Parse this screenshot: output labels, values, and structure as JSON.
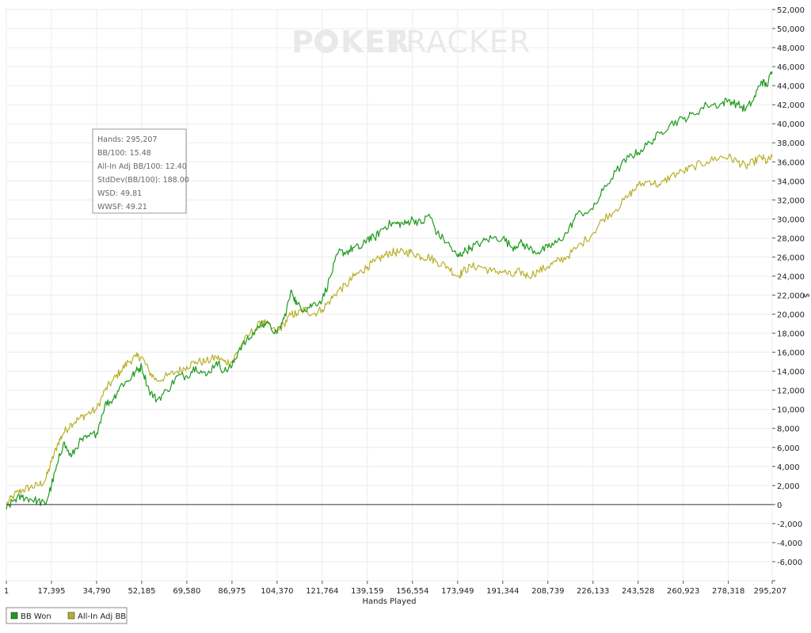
{
  "watermark": {
    "left": "P",
    "middle": "KER",
    "right": "TRACKER"
  },
  "stats": [
    "Hands: 295,207",
    "BB/100: 15.48",
    "All-In Adj BB/100: 12.40",
    "StdDev(BB/100): 188.00",
    "WSD: 49.81",
    "WWSF: 49.21"
  ],
  "legend": [
    {
      "label": "BB Won",
      "color": "#1e9a1e"
    },
    {
      "label": "All-In Adj BB",
      "color": "#b9b02a"
    }
  ],
  "chart_data": {
    "type": "line",
    "xlabel": "Hands Played",
    "ylabel": "$",
    "xlim": [
      1,
      295207
    ],
    "ylim": [
      -8000,
      52000
    ],
    "x_ticks": [
      1,
      17395,
      34790,
      52185,
      69580,
      86975,
      104370,
      121764,
      139159,
      156554,
      173949,
      191344,
      208739,
      226133,
      243528,
      260923,
      278318,
      295207
    ],
    "x_tick_labels": [
      "1",
      "17,395",
      "34,790",
      "52,185",
      "69,580",
      "86,975",
      "104,370",
      "121,764",
      "139,159",
      "156,554",
      "173,949",
      "191,344",
      "208,739",
      "226,133",
      "243,528",
      "260,923",
      "278,318",
      "295,207"
    ],
    "y_ticks": [
      -8000,
      -6000,
      -4000,
      -2000,
      0,
      2000,
      4000,
      6000,
      8000,
      10000,
      12000,
      14000,
      16000,
      18000,
      20000,
      22000,
      24000,
      26000,
      28000,
      30000,
      32000,
      34000,
      36000,
      38000,
      40000,
      42000,
      44000,
      46000,
      48000,
      50000,
      52000
    ],
    "y_tick_labels": [
      "",
      "-6,000",
      "-4,000",
      "-2,000",
      "0",
      "2,000",
      "4,000",
      "6,000",
      "8,000",
      "10,000",
      "12,000",
      "14,000",
      "16,000",
      "18,000",
      "20,000",
      "22,000",
      "24,000",
      "26,000",
      "28,000",
      "30,000",
      "32,000",
      "34,000",
      "36,000",
      "38,000",
      "40,000",
      "42,000",
      "44,000",
      "46,000",
      "48,000",
      "50,000",
      "52,000"
    ],
    "grid": true,
    "series": [
      {
        "name": "BB Won",
        "color": "#1e9a1e",
        "x": [
          1,
          3000,
          6000,
          9000,
          12000,
          15000,
          17395,
          20000,
          22000,
          25000,
          28000,
          31000,
          34790,
          38000,
          41000,
          44000,
          47000,
          50000,
          52185,
          55000,
          58000,
          62000,
          66000,
          69580,
          73000,
          77000,
          81000,
          84000,
          86975,
          90000,
          94000,
          98000,
          100000,
          104370,
          107000,
          110000,
          112000,
          115000,
          118000,
          121764,
          125000,
          128000,
          131000,
          134000,
          137000,
          139159,
          142000,
          145000,
          148000,
          151000,
          154000,
          156554,
          160000,
          163000,
          166000,
          170000,
          173949,
          176000,
          179000,
          183000,
          187000,
          191344,
          195000,
          198000,
          201000,
          205000,
          208739,
          212000,
          216000,
          220000,
          226133,
          230000,
          235000,
          240000,
          243528,
          248000,
          252000,
          256000,
          260923,
          265000,
          270000,
          275000,
          278318,
          282000,
          285000,
          288000,
          291000,
          293000,
          295207
        ],
        "y": [
          -500,
          500,
          800,
          600,
          400,
          0,
          2000,
          4500,
          6500,
          5000,
          6500,
          7000,
          7500,
          10500,
          11000,
          12500,
          13000,
          14000,
          14500,
          12000,
          11000,
          12000,
          13500,
          13500,
          14500,
          13500,
          15000,
          14000,
          14500,
          16500,
          17500,
          19000,
          19000,
          18000,
          19500,
          22500,
          21000,
          20500,
          21000,
          21500,
          24000,
          26500,
          26500,
          27000,
          27000,
          28000,
          28000,
          29000,
          29500,
          29500,
          29500,
          30000,
          29500,
          30500,
          28500,
          27500,
          26000,
          26500,
          27000,
          27500,
          28000,
          28000,
          27000,
          27500,
          27000,
          26500,
          27000,
          27500,
          28500,
          30500,
          31000,
          33000,
          35000,
          36500,
          37000,
          38000,
          39000,
          40000,
          40500,
          41000,
          42000,
          42000,
          42500,
          42000,
          41500,
          42500,
          44500,
          44000,
          45500
        ]
      },
      {
        "name": "All-In Adj BB",
        "color": "#b9b02a",
        "x": [
          1,
          3000,
          6000,
          9000,
          12000,
          15000,
          17395,
          20000,
          22000,
          25000,
          28000,
          31000,
          34790,
          38000,
          41000,
          44000,
          47000,
          50000,
          52185,
          55000,
          58000,
          62000,
          66000,
          69580,
          73000,
          77000,
          81000,
          84000,
          86975,
          90000,
          94000,
          98000,
          100000,
          104370,
          107000,
          110000,
          112000,
          115000,
          118000,
          121764,
          125000,
          128000,
          131000,
          134000,
          137000,
          139159,
          142000,
          145000,
          148000,
          151000,
          154000,
          156554,
          160000,
          163000,
          166000,
          170000,
          173949,
          176000,
          179000,
          183000,
          187000,
          191344,
          195000,
          198000,
          201000,
          205000,
          208739,
          212000,
          216000,
          220000,
          226133,
          230000,
          235000,
          240000,
          243528,
          248000,
          252000,
          256000,
          260923,
          265000,
          270000,
          275000,
          278318,
          282000,
          285000,
          288000,
          291000,
          293000,
          295207
        ],
        "y": [
          0,
          1000,
          1500,
          1800,
          2000,
          2500,
          4500,
          6500,
          7500,
          8500,
          9000,
          9500,
          10000,
          12000,
          13000,
          14000,
          15000,
          15500,
          15500,
          14000,
          13000,
          13500,
          14000,
          14500,
          15000,
          15000,
          15500,
          15000,
          15000,
          16500,
          18000,
          19000,
          19000,
          18000,
          19000,
          20000,
          20000,
          20500,
          20000,
          20500,
          21500,
          22500,
          23000,
          24000,
          24500,
          25000,
          25500,
          26000,
          26500,
          26500,
          26500,
          26500,
          26000,
          26000,
          25500,
          25000,
          24000,
          24500,
          25000,
          25000,
          24500,
          24500,
          24000,
          24500,
          24000,
          24500,
          25000,
          25500,
          26000,
          27000,
          28500,
          30000,
          31000,
          32500,
          33500,
          34000,
          33500,
          34500,
          35000,
          35500,
          36000,
          36500,
          36500,
          36000,
          35500,
          36000,
          36500,
          36000,
          36500
        ]
      }
    ]
  }
}
